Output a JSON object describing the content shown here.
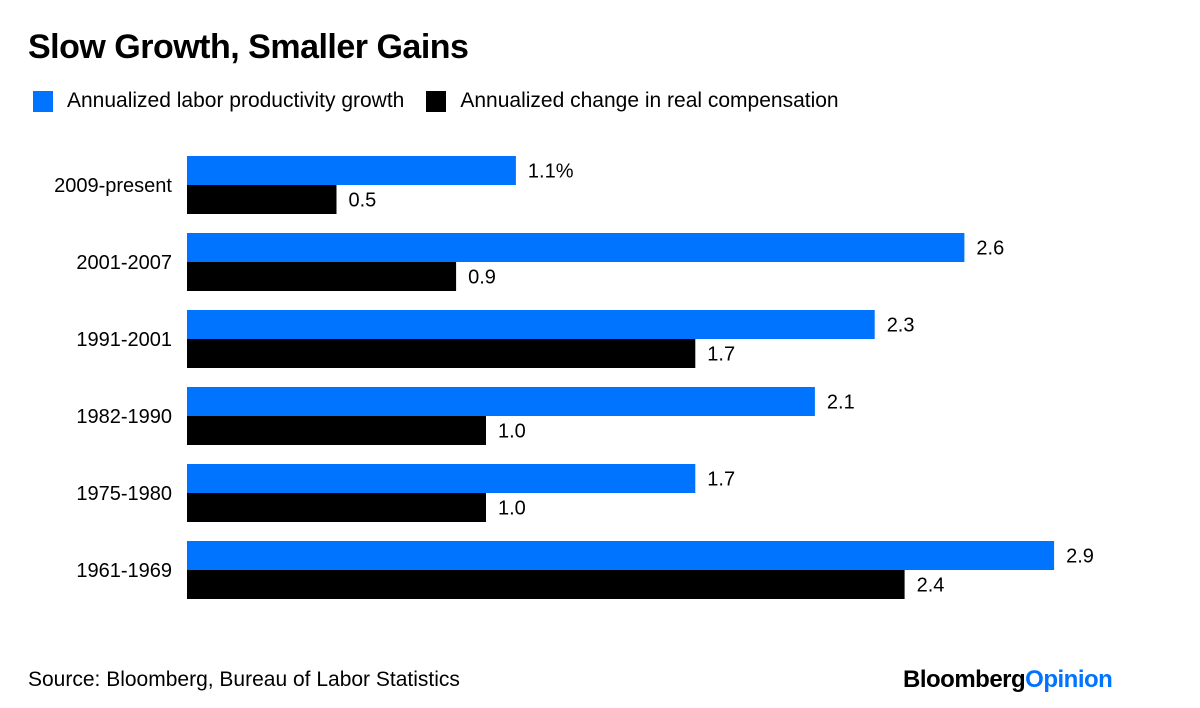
{
  "chart_data": {
    "type": "bar",
    "orientation": "horizontal",
    "title": "Slow Growth, Smaller Gains",
    "categories": [
      "2009-present",
      "2001-2007",
      "1991-2001",
      "1982-1990",
      "1975-1980",
      "1961-1969"
    ],
    "series": [
      {
        "name": "Annualized labor productivity growth",
        "color": "#0073ff",
        "values": [
          1.1,
          2.6,
          2.3,
          2.1,
          1.7,
          2.9
        ],
        "labels": [
          "1.1%",
          "2.6",
          "2.3",
          "2.1",
          "1.7",
          "2.9"
        ]
      },
      {
        "name": "Annualized change in real compensation",
        "color": "#000000",
        "values": [
          0.5,
          0.9,
          1.7,
          1.0,
          1.0,
          2.4
        ],
        "labels": [
          "0.5",
          "0.9",
          "1.7",
          "1.0",
          "1.0",
          "2.4"
        ]
      }
    ],
    "xlabel": "",
    "ylabel": "",
    "xlim": [
      0,
      2.9
    ],
    "grid": false,
    "legend": "top-left",
    "source": "Source: Bloomberg, Bureau of Labor Statistics"
  },
  "branding": {
    "part1": "Bloomberg",
    "part2": "Opinion"
  }
}
